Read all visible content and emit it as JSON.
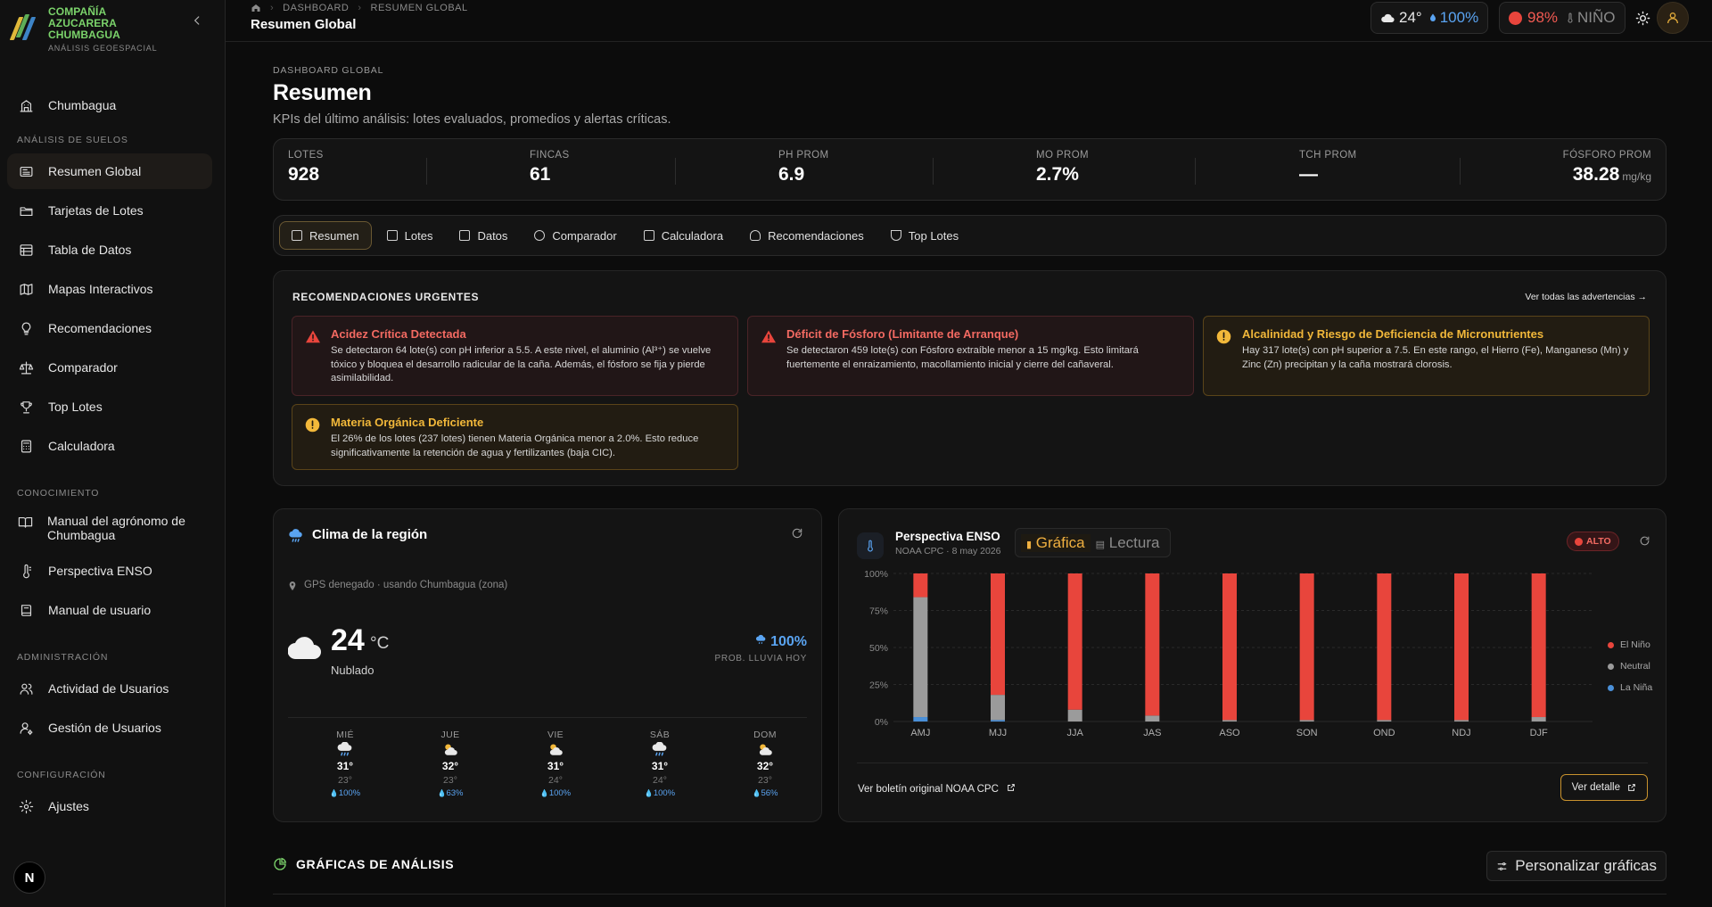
{
  "brand": {
    "name": "COMPAÑÍA AZUCARERA CHUMBAGUA",
    "subtitle": "ANÁLISIS GEOESPACIAL"
  },
  "sidebar": {
    "top_item": "Chumbagua",
    "sections": [
      {
        "title": "ANÁLISIS DE SUELOS",
        "items": [
          "Resumen Global",
          "Tarjetas de Lotes",
          "Tabla de Datos",
          "Mapas Interactivos",
          "Recomendaciones",
          "Comparador",
          "Top Lotes",
          "Calculadora"
        ]
      },
      {
        "title": "CONOCIMIENTO",
        "items": [
          "Manual del agrónomo de Chumbagua",
          "Perspectiva ENSO",
          "Manual de usuario"
        ]
      },
      {
        "title": "ADMINISTRACIÓN",
        "items": [
          "Actividad de Usuarios",
          "Gestión de Usuarios"
        ]
      },
      {
        "title": "CONFIGURACIÓN",
        "items": [
          "Ajustes"
        ]
      }
    ],
    "footer_badge": "N"
  },
  "topbar": {
    "breadcrumb": [
      "DASHBOARD",
      "RESUMEN GLOBAL"
    ],
    "title": "Resumen Global",
    "weather_temp": "24°",
    "weather_rain": "100%",
    "enso_pct": "98%",
    "enso_phase": "NIÑO"
  },
  "header": {
    "eyebrow": "DASHBOARD GLOBAL",
    "title": "Resumen",
    "subtitle": "KPIs del último análisis: lotes evaluados, promedios y alertas críticas."
  },
  "kpis": [
    {
      "label": "LOTES",
      "value": "928",
      "unit": ""
    },
    {
      "label": "FINCAS",
      "value": "61",
      "unit": ""
    },
    {
      "label": "PH PROM",
      "value": "6.9",
      "unit": ""
    },
    {
      "label": "MO PROM",
      "value": "2.7%",
      "unit": ""
    },
    {
      "label": "TCH PROM",
      "value": "—",
      "unit": ""
    },
    {
      "label": "FÓSFORO PROM",
      "value": "38.28",
      "unit": "mg/kg"
    }
  ],
  "tabs": [
    "Resumen",
    "Lotes",
    "Datos",
    "Comparador",
    "Calculadora",
    "Recomendaciones",
    "Top Lotes"
  ],
  "recommendations": {
    "title": "RECOMENDACIONES URGENTES",
    "link": "Ver todas las advertencias",
    "alerts": [
      {
        "level": "red",
        "title": "Acidez Crítica Detectada",
        "body": "Se detectaron 64 lote(s) con pH inferior a 5.5. A este nivel, el aluminio (Al³⁺) se vuelve tóxico y bloquea el desarrollo radicular de la caña. Además, el fósforo se fija y pierde asimilabilidad."
      },
      {
        "level": "red",
        "title": "Déficit de Fósforo (Limitante de Arranque)",
        "body": "Se detectaron 459 lote(s) con Fósforo extraíble menor a 15 mg/kg. Esto limitará fuertemente el enraizamiento, macollamiento inicial y cierre del cañaveral."
      },
      {
        "level": "amber",
        "title": "Alcalinidad y Riesgo de Deficiencia de Micronutrientes",
        "body": "Hay 317 lote(s) con pH superior a 7.5. En este rango, el Hierro (Fe), Manganeso (Mn) y Zinc (Zn) precipitan y la caña mostrará clorosis."
      },
      {
        "level": "amber",
        "title": "Materia Orgánica Deficiente",
        "body": "El 26% de los lotes (237 lotes) tienen Materia Orgánica menor a 2.0%. Esto reduce significativamente la retención de agua y fertilizantes (baja CIC)."
      }
    ]
  },
  "weather": {
    "title": "Clima de la región",
    "gps": "GPS denegado · usando Chumbagua (zona)",
    "temp": "24",
    "unit": "°C",
    "condition": "Nublado",
    "rain_prob": "100%",
    "rain_label": "PROB. LLUVIA HOY",
    "forecast": [
      {
        "day": "MIÉ",
        "icon": "rain-icon",
        "high": "31°",
        "low": "23°",
        "prob": "100%"
      },
      {
        "day": "JUE",
        "icon": "partly-sunny-icon",
        "high": "32°",
        "low": "23°",
        "prob": "63%"
      },
      {
        "day": "VIE",
        "icon": "partly-sunny-icon",
        "high": "31°",
        "low": "24°",
        "prob": "100%"
      },
      {
        "day": "SÁB",
        "icon": "rain-icon",
        "high": "31°",
        "low": "24°",
        "prob": "100%"
      },
      {
        "day": "DOM",
        "icon": "partly-sunny-icon",
        "high": "32°",
        "low": "23°",
        "prob": "56%"
      }
    ]
  },
  "enso": {
    "title": "Perspectiva ENSO",
    "subtitle": "NOAA CPC · 8 may 2026",
    "view_chart": "Gráfica",
    "view_read": "Lectura",
    "badge": "ALTO",
    "link": "Ver boletín original NOAA CPC",
    "button": "Ver detalle"
  },
  "chart_data": {
    "type": "bar",
    "stacked": true,
    "categories": [
      "AMJ",
      "MJJ",
      "JJA",
      "JAS",
      "ASO",
      "SON",
      "OND",
      "NDJ",
      "DJF"
    ],
    "series": [
      {
        "name": "La Niña",
        "color": "#4a90d9",
        "values": [
          3,
          1,
          0,
          0,
          0,
          0,
          0,
          0,
          0
        ]
      },
      {
        "name": "Neutral",
        "color": "#9b9b9b",
        "values": [
          81,
          17,
          8,
          4,
          1,
          1,
          1,
          1,
          3
        ]
      },
      {
        "name": "El Niño",
        "color": "#e8453c",
        "values": [
          16,
          82,
          92,
          96,
          99,
          99,
          99,
          99,
          97
        ]
      }
    ],
    "yticks": [
      "0%",
      "25%",
      "50%",
      "75%",
      "100%"
    ],
    "ylim": [
      0,
      100
    ],
    "grid": true,
    "legend": "right"
  },
  "analysis": {
    "title": "GRÁFICAS DE ANÁLISIS",
    "button": "Personalizar gráficas"
  },
  "colors": {
    "accent": "#c8922e",
    "brand": "#7bd36b",
    "danger": "#e8453c",
    "info": "#5aa4f2"
  }
}
